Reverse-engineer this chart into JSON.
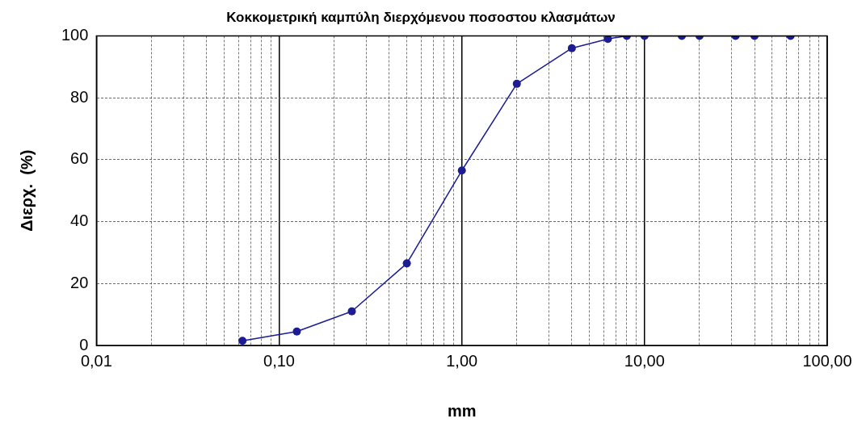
{
  "chart_data": {
    "type": "line",
    "title": "Κοκκομετρική καμπύλη διερχόμενου ποσοστου κλασμάτων",
    "xlabel": "mm",
    "ylabel": "Διερχ.  (%)",
    "x": [
      0.063,
      0.125,
      0.25,
      0.5,
      1,
      2,
      4,
      6.3,
      8,
      10,
      16,
      20,
      31.5,
      40,
      63
    ],
    "series": [
      {
        "color": "#1c1c94",
        "values": [
          1.5,
          4.5,
          11,
          26.5,
          56.5,
          84.5,
          96,
          99,
          100,
          100,
          100,
          100,
          100,
          100,
          100
        ]
      }
    ],
    "log": "x",
    "xlim": [
      0.01,
      100
    ],
    "ylim": [
      0,
      100
    ],
    "xticks": [
      {
        "value": 0.01,
        "label": "0,01"
      },
      {
        "value": 0.02,
        "label": null
      },
      {
        "value": 0.03,
        "label": null
      },
      {
        "value": 0.04,
        "label": null
      },
      {
        "value": 0.05,
        "label": null
      },
      {
        "value": 0.06,
        "label": null
      },
      {
        "value": 0.07,
        "label": null
      },
      {
        "value": 0.08,
        "label": null
      },
      {
        "value": 0.09,
        "label": null
      },
      {
        "value": 0.1,
        "label": "0,10"
      },
      {
        "value": 0.2,
        "label": null
      },
      {
        "value": 0.3,
        "label": null
      },
      {
        "value": 0.4,
        "label": null
      },
      {
        "value": 0.5,
        "label": null
      },
      {
        "value": 0.6,
        "label": null
      },
      {
        "value": 0.7,
        "label": null
      },
      {
        "value": 0.8,
        "label": null
      },
      {
        "value": 0.9,
        "label": null
      },
      {
        "value": 1,
        "label": "1,00"
      },
      {
        "value": 2,
        "label": null
      },
      {
        "value": 3,
        "label": null
      },
      {
        "value": 4,
        "label": null
      },
      {
        "value": 5,
        "label": null
      },
      {
        "value": 6,
        "label": null
      },
      {
        "value": 7,
        "label": null
      },
      {
        "value": 8,
        "label": null
      },
      {
        "value": 9,
        "label": null
      },
      {
        "value": 10,
        "label": "10,00"
      },
      {
        "value": 20,
        "label": null
      },
      {
        "value": 30,
        "label": null
      },
      {
        "value": 40,
        "label": null
      },
      {
        "value": 50,
        "label": null
      },
      {
        "value": 60,
        "label": null
      },
      {
        "value": 70,
        "label": null
      },
      {
        "value": 80,
        "label": null
      },
      {
        "value": 90,
        "label": null
      },
      {
        "value": 100,
        "label": "100,00"
      }
    ],
    "yticks": [
      0,
      20,
      40,
      60,
      80,
      100
    ],
    "grid": true,
    "legend": false,
    "marker": "circle",
    "line_style": "solid"
  }
}
